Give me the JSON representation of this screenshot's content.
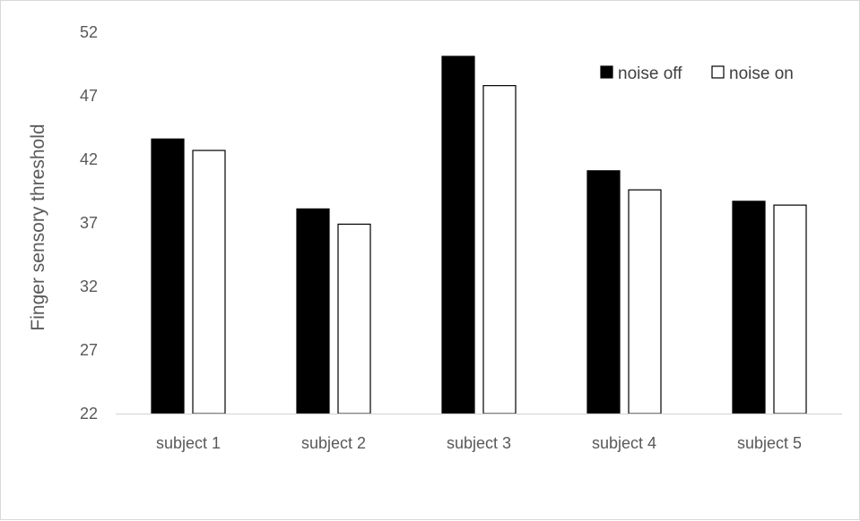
{
  "chart_data": {
    "type": "bar",
    "title": "",
    "xlabel": "",
    "ylabel": "Finger sensory threshold",
    "ylim": [
      22,
      52
    ],
    "yticks": [
      22,
      27,
      32,
      37,
      42,
      47,
      52
    ],
    "categories": [
      "subject 1",
      "subject 2",
      "subject 3",
      "subject 4",
      "subject 5"
    ],
    "series": [
      {
        "name": "noise off",
        "color": "#000000",
        "values": [
          43.6,
          38.1,
          50.1,
          41.1,
          38.7
        ]
      },
      {
        "name": "noise on",
        "color": "#ffffff",
        "values": [
          42.7,
          36.9,
          47.8,
          39.6,
          38.4
        ]
      }
    ],
    "grid": false,
    "legend_position": "top-right"
  }
}
